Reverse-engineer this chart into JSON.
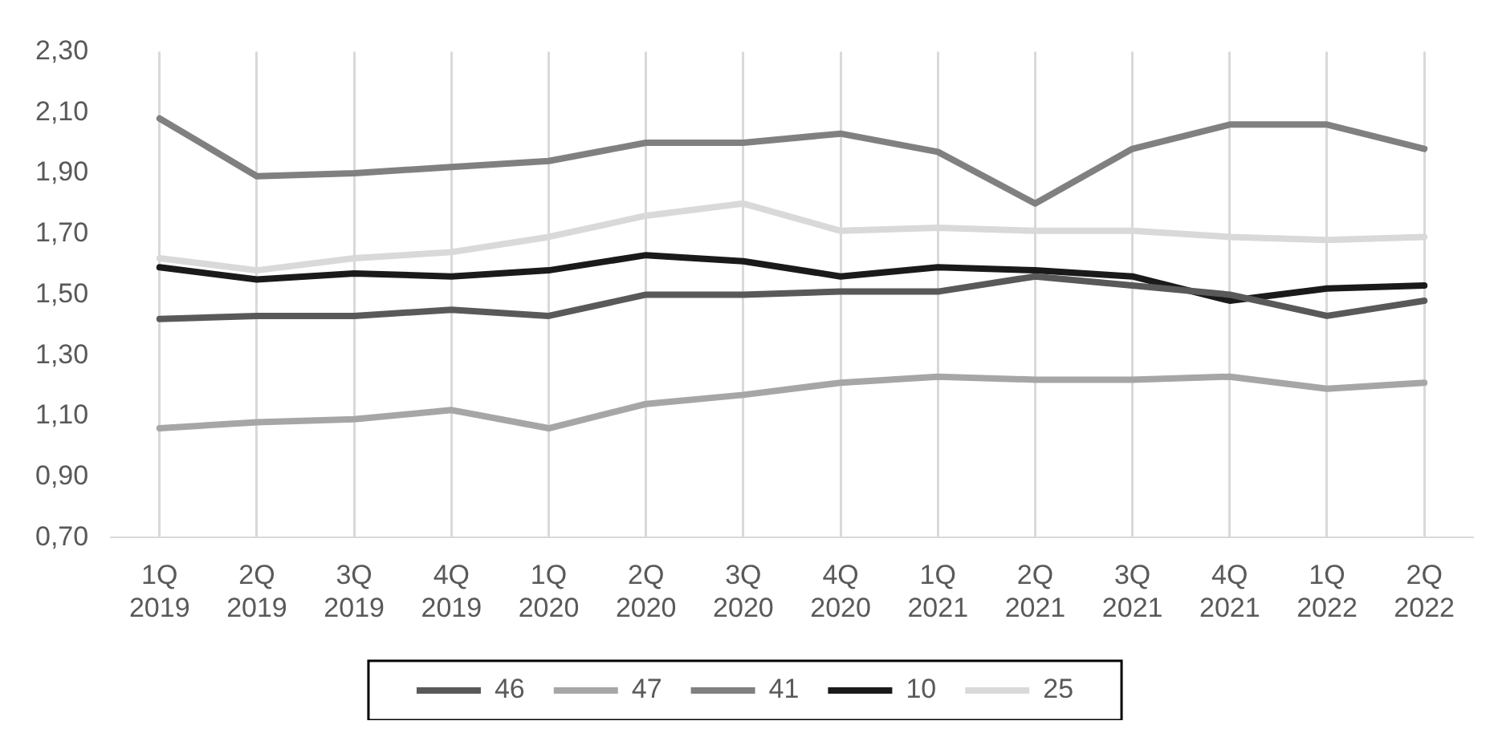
{
  "chart_data": {
    "type": "line",
    "categories": [
      "1Q 2019",
      "2Q 2019",
      "3Q 2019",
      "4Q 2019",
      "1Q 2020",
      "2Q 2020",
      "3Q 2020",
      "4Q 2020",
      "1Q 2021",
      "2Q 2021",
      "3Q 2021",
      "4Q 2021",
      "1Q 2022",
      "2Q 2022"
    ],
    "series": [
      {
        "name": "46",
        "color": "#595959",
        "values": [
          1.42,
          1.43,
          1.43,
          1.45,
          1.43,
          1.5,
          1.5,
          1.51,
          1.51,
          1.56,
          1.53,
          1.5,
          1.43,
          1.48
        ]
      },
      {
        "name": "47",
        "color": "#a6a6a6",
        "values": [
          1.06,
          1.08,
          1.09,
          1.12,
          1.06,
          1.14,
          1.17,
          1.21,
          1.23,
          1.22,
          1.22,
          1.23,
          1.19,
          1.21
        ]
      },
      {
        "name": "41",
        "color": "#808080",
        "values": [
          2.08,
          1.89,
          1.9,
          1.92,
          1.94,
          2.0,
          2.0,
          2.03,
          1.97,
          1.8,
          1.98,
          2.06,
          2.06,
          1.98
        ]
      },
      {
        "name": "10",
        "color": "#1a1a1a",
        "values": [
          1.59,
          1.55,
          1.57,
          1.56,
          1.58,
          1.63,
          1.61,
          1.56,
          1.59,
          1.58,
          1.56,
          1.48,
          1.52,
          1.53
        ]
      },
      {
        "name": "25",
        "color": "#d9d9d9",
        "values": [
          1.62,
          1.58,
          1.62,
          1.64,
          1.69,
          1.76,
          1.8,
          1.71,
          1.72,
          1.71,
          1.71,
          1.69,
          1.68,
          1.69
        ]
      }
    ],
    "ylim": [
      0.7,
      2.3
    ],
    "yticks": [
      {
        "value": 0.7,
        "label": "0,70"
      },
      {
        "value": 0.9,
        "label": "0,90"
      },
      {
        "value": 1.1,
        "label": "1,10"
      },
      {
        "value": 1.3,
        "label": "1,30"
      },
      {
        "value": 1.5,
        "label": "1,50"
      },
      {
        "value": 1.7,
        "label": "1,70"
      },
      {
        "value": 1.9,
        "label": "1,90"
      },
      {
        "value": 2.1,
        "label": "2,10"
      },
      {
        "value": 2.3,
        "label": "2,30"
      }
    ],
    "grid": "x",
    "legend": "bottom",
    "marker": "none",
    "line_style": "solid"
  }
}
